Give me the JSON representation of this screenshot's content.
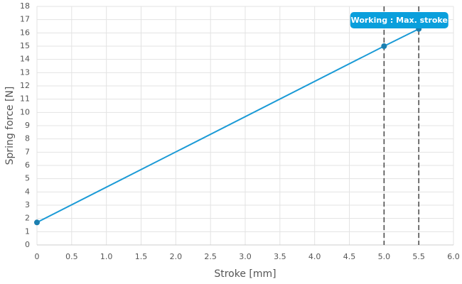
{
  "chart_data": {
    "type": "line",
    "x_label": "Stroke [mm]",
    "y_label": "Spring force [N]",
    "x": [
      0,
      5.0,
      5.5
    ],
    "series": [
      {
        "color": "#1a9ad6",
        "values": [
          1.7,
          15,
          16.3
        ]
      }
    ],
    "marker_color": "#1b7fb0",
    "xlim": [
      0,
      6
    ],
    "ylim": [
      0,
      18
    ],
    "xticks": [
      0,
      {
        "value": 0.5,
        "label": "0.5"
      },
      {
        "value": 1,
        "label": "1.0"
      },
      {
        "value": 1.5,
        "label": "1.5"
      },
      {
        "value": 2,
        "label": "2.0"
      },
      {
        "value": 2.5,
        "label": "2.5"
      },
      {
        "value": 3,
        "label": "3.0"
      },
      {
        "value": 3.5,
        "label": "3.5"
      },
      {
        "value": 4,
        "label": "4.0"
      },
      {
        "value": 4.5,
        "label": "4.5"
      },
      {
        "value": 5,
        "label": "5.0"
      },
      {
        "value": 5.5,
        "label": "5.5"
      },
      {
        "value": 6,
        "label": "6.0"
      }
    ],
    "yticks": [
      0,
      1,
      2,
      3,
      4,
      5,
      6,
      7,
      8,
      9,
      10,
      11,
      12,
      13,
      14,
      15,
      16,
      17,
      18
    ],
    "grid": true,
    "vlines": [
      5.0,
      5.5
    ],
    "annotation": "Working : Max. stroke",
    "annotation_color": "#0a9fdc"
  }
}
